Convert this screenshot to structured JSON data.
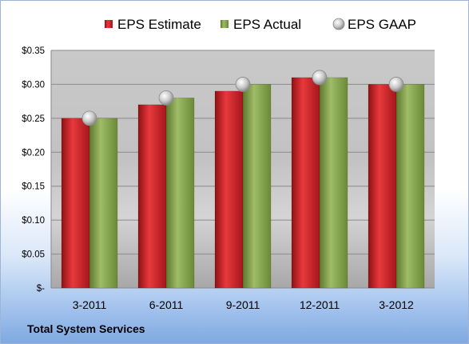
{
  "chart_data": {
    "type": "bar",
    "categories": [
      "3-2011",
      "6-2011",
      "9-2011",
      "12-2011",
      "3-2012"
    ],
    "series": [
      {
        "name": "EPS Estimate",
        "values": [
          0.25,
          0.27,
          0.29,
          0.31,
          0.3
        ],
        "color": "#d9262c"
      },
      {
        "name": "EPS Actual",
        "values": [
          0.25,
          0.28,
          0.3,
          0.31,
          0.3
        ],
        "color": "#8cab56"
      },
      {
        "name": "EPS GAAP",
        "kind": "marker",
        "values": [
          0.25,
          0.28,
          0.3,
          0.31,
          0.3
        ],
        "color": "#c0c0c0"
      }
    ],
    "yticks": [
      "$-",
      "$0.05",
      "$0.10",
      "$0.15",
      "$0.20",
      "$0.25",
      "$0.30",
      "$0.35"
    ],
    "ylim": [
      0,
      0.35
    ],
    "grid": true,
    "legend_position": "top"
  },
  "footer": {
    "company": "Total System Services"
  }
}
